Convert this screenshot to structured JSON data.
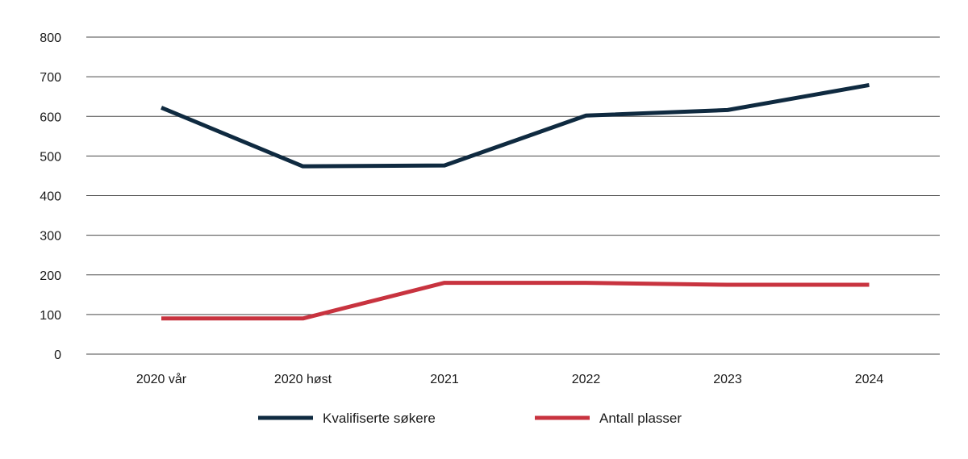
{
  "chart_data": {
    "type": "line",
    "title": "",
    "xlabel": "",
    "ylabel": "",
    "categories": [
      "2020 vår",
      "2020 høst",
      "2021",
      "2022",
      "2023",
      "2024"
    ],
    "ylim": [
      0,
      800
    ],
    "yticks": [
      0,
      100,
      200,
      300,
      400,
      500,
      600,
      700,
      800
    ],
    "grid": true,
    "legend_position": "bottom",
    "series": [
      {
        "name": "Kvalifiserte søkere",
        "color": "#0f2a40",
        "values": [
          622,
          474,
          476,
          602,
          616,
          679
        ]
      },
      {
        "name": "Antall plasser",
        "color": "#c8333f",
        "values": [
          90,
          90,
          180,
          180,
          175,
          175
        ]
      }
    ]
  }
}
